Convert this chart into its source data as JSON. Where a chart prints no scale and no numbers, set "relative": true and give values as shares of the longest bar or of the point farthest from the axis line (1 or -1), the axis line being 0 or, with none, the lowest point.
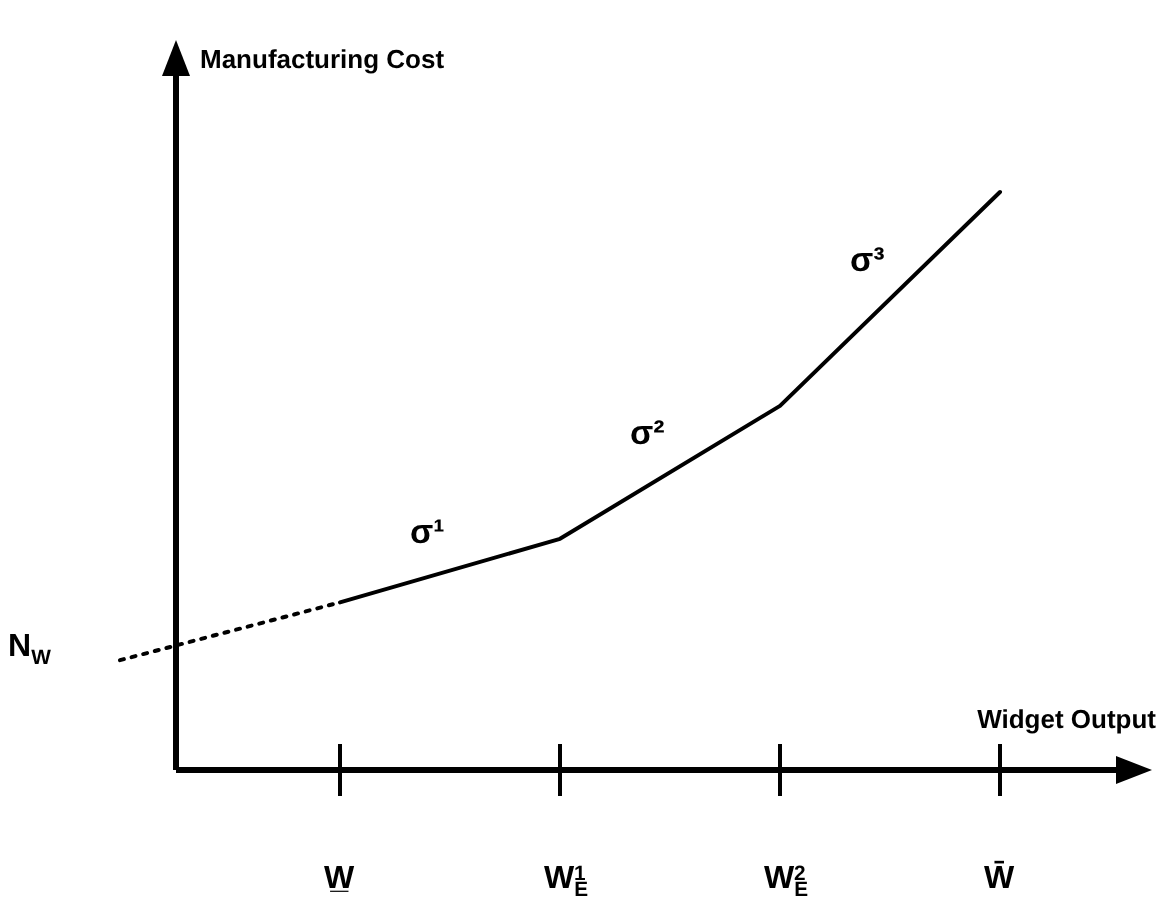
{
  "chart_data": {
    "type": "line",
    "relative": true,
    "xlabel": "Widget Output",
    "ylabel": "Manufacturing Cost",
    "categories": [
      null,
      "W̲",
      "W$_{E}$$^{1}$",
      "W$_{E}$$^{2}$",
      "W̄"
    ],
    "series": [
      {
        "color": "#000000",
        "line_style": "solid",
        "values": [
          null,
          0.29,
          0.4,
          0.63,
          1
        ]
      },
      {
        "color": "#000000",
        "line_style": "dotted",
        "values": [
          0.19,
          0.29,
          null,
          null,
          null
        ]
      }
    ],
    "annotations": [
      {
        "text": "σ¹"
      },
      {
        "text": "σ²"
      },
      {
        "text": "σ³"
      },
      "N$_{W}$"
    ],
    "marker": "none",
    "grid": false,
    "legend": false
  }
}
